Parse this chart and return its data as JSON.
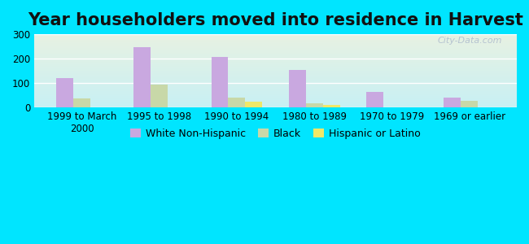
{
  "title": "Year householders moved into residence in Harvest",
  "categories": [
    "1999 to March\n2000",
    "1995 to 1998",
    "1990 to 1994",
    "1980 to 1989",
    "1970 to 1979",
    "1969 or earlier"
  ],
  "white": [
    120,
    248,
    208,
    152,
    63,
    40
  ],
  "black": [
    35,
    92,
    40,
    18,
    0,
    27
  ],
  "hispanic": [
    0,
    0,
    22,
    8,
    0,
    0
  ],
  "white_color": "#c9a8e0",
  "black_color": "#c8d8a8",
  "hispanic_color": "#f0e868",
  "ylim": [
    0,
    300
  ],
  "yticks": [
    0,
    100,
    200,
    300
  ],
  "background_outer": "#00e5ff",
  "grid_color": "#ffffff",
  "bar_width": 0.22,
  "legend_labels": [
    "White Non-Hispanic",
    "Black",
    "Hispanic or Latino"
  ],
  "watermark": "City-Data.com",
  "title_fontsize": 15,
  "tick_fontsize": 8.5,
  "legend_fontsize": 9
}
